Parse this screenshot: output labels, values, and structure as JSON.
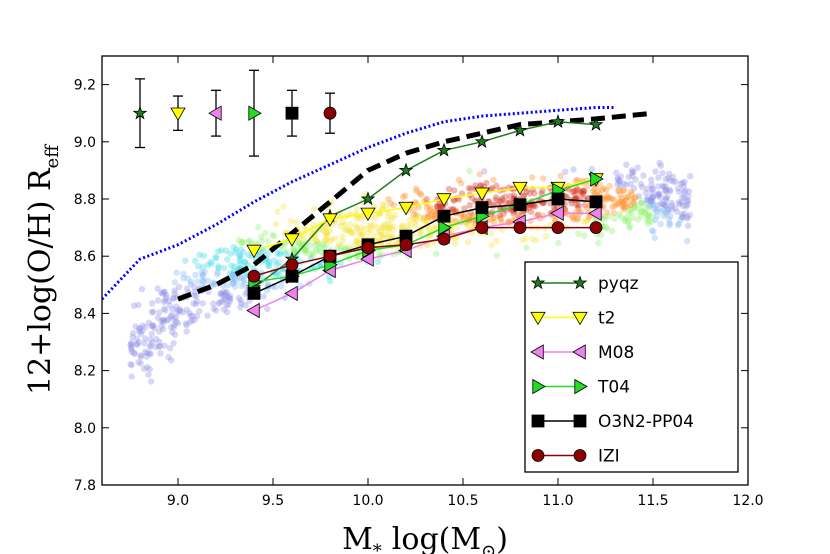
{
  "chart_data": {
    "type": "line",
    "xlabel": "M",
    "xlabel_sub": "*",
    "xlabel_unit": "log(M",
    "xlabel_unit_sub": "⊙",
    "xlabel_unit_close": ")",
    "ylabel": "12+log(O/H) R",
    "ylabel_sub": "eff",
    "xlim": [
      8.6,
      12.0
    ],
    "ylim": [
      7.8,
      9.3
    ],
    "xticks": [
      "9.0",
      "9.5",
      "10.0",
      "10.5",
      "11.0",
      "11.5",
      "12.0"
    ],
    "yticks": [
      "7.8",
      "8.0",
      "8.2",
      "8.4",
      "8.6",
      "8.8",
      "9.0",
      "9.2"
    ],
    "x": [
      9.4,
      9.6,
      9.8,
      10.0,
      10.2,
      10.4,
      10.6,
      10.8,
      11.0,
      11.2
    ],
    "series": [
      {
        "name": "pyqz",
        "color": "#1e7d1e",
        "marker": "star",
        "values": [
          8.49,
          8.59,
          8.74,
          8.8,
          8.9,
          8.97,
          9.0,
          9.04,
          9.07,
          9.06
        ]
      },
      {
        "name": "t2",
        "color": "#ffff00",
        "marker": "triangle-down",
        "values": [
          8.62,
          8.66,
          8.73,
          8.75,
          8.77,
          8.8,
          8.82,
          8.84,
          8.84,
          8.87
        ]
      },
      {
        "name": "M08",
        "color": "#ee82ee",
        "marker": "triangle-left",
        "values": [
          8.41,
          8.47,
          8.55,
          8.59,
          8.62,
          8.67,
          8.7,
          8.72,
          8.75,
          8.75
        ]
      },
      {
        "name": "T04",
        "color": "#22dd22",
        "marker": "triangle-right",
        "values": [
          8.51,
          8.53,
          8.57,
          8.62,
          8.64,
          8.7,
          8.74,
          8.78,
          8.83,
          8.87
        ]
      },
      {
        "name": "O3N2-PP04",
        "color": "#000000",
        "marker": "square",
        "values": [
          8.47,
          8.53,
          8.6,
          8.64,
          8.67,
          8.74,
          8.77,
          8.78,
          8.8,
          8.79
        ]
      },
      {
        "name": "IZI",
        "color": "#8b0000",
        "marker": "circle",
        "values": [
          8.53,
          8.57,
          8.6,
          8.63,
          8.64,
          8.66,
          8.7,
          8.7,
          8.7,
          8.7
        ]
      }
    ],
    "error_bars": [
      {
        "series": "pyqz",
        "x": 8.8,
        "y": 9.1,
        "err": 0.12
      },
      {
        "series": "t2",
        "x": 9.0,
        "y": 9.1,
        "err": 0.06
      },
      {
        "series": "M08",
        "x": 9.2,
        "y": 9.1,
        "err": 0.08
      },
      {
        "series": "T04",
        "x": 9.4,
        "y": 9.1,
        "err": 0.15
      },
      {
        "series": "O3N2-PP04",
        "x": 9.6,
        "y": 9.1,
        "err": 0.08
      },
      {
        "series": "IZI",
        "x": 9.8,
        "y": 9.1,
        "err": 0.07
      }
    ],
    "reference_curves": [
      {
        "name": "dotted-blue",
        "color": "#0000ff",
        "style": "dotted",
        "x": [
          8.6,
          8.7,
          8.8,
          9.0,
          9.2,
          9.4,
          9.6,
          9.8,
          10.0,
          10.2,
          10.4,
          10.6,
          10.8,
          11.0,
          11.2,
          11.3
        ],
        "y": [
          8.45,
          8.52,
          8.59,
          8.64,
          8.71,
          8.79,
          8.86,
          8.92,
          8.98,
          9.03,
          9.07,
          9.09,
          9.1,
          9.11,
          9.12,
          9.12
        ]
      },
      {
        "name": "dashed-black",
        "color": "#000000",
        "style": "dashed",
        "x": [
          9.0,
          9.2,
          9.4,
          9.6,
          9.8,
          10.0,
          10.2,
          10.4,
          10.6,
          10.8,
          11.0,
          11.2,
          11.5
        ],
        "y": [
          8.45,
          8.5,
          8.57,
          8.68,
          8.79,
          8.9,
          8.96,
          9.0,
          9.03,
          9.06,
          9.07,
          9.08,
          9.1
        ]
      }
    ],
    "legend": {
      "position": "bottom-right",
      "labels": [
        "pyqz",
        "t2",
        "M08",
        "T04",
        "O3N2-PP04",
        "IZI"
      ]
    },
    "background_points": "dense scatter of individual galaxies colored by density (blue to red)"
  }
}
